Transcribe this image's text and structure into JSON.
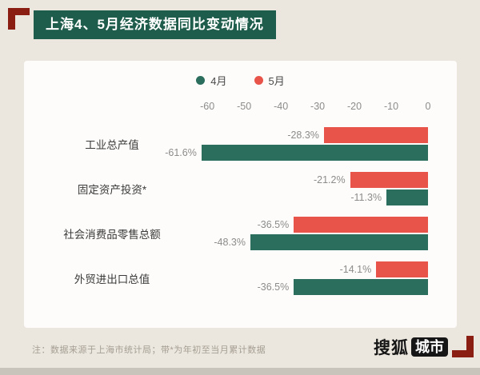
{
  "page": {
    "title": "上海4、5月经济数据同比变动情况",
    "note": "注：数据来源于上海市统计局；带*为年初至当月累计数据",
    "logo": {
      "text_black": "搜狐",
      "text_badge": "城市"
    },
    "colors": {
      "background": "#ece7de",
      "card": "#fdfcfa",
      "title_badge": "#1e5c4b",
      "bracket": "#8b1e12",
      "april_green": "#2c6e5d",
      "may_red": "#e85449"
    }
  },
  "chart_data": {
    "type": "bar",
    "orientation": "horizontal",
    "title": "上海4、5月经济数据同比变动情况",
    "categories": [
      "工业总产值",
      "固定资产投资*",
      "社会消费品零售总额",
      "外贸进出口总值"
    ],
    "series": [
      {
        "name": "5月",
        "color": "#e85449",
        "values": [
          -28.3,
          -21.2,
          -36.5,
          -14.1
        ]
      },
      {
        "name": "4月",
        "color": "#2c6e5d",
        "values": [
          -61.6,
          -11.3,
          -48.3,
          -36.5
        ]
      }
    ],
    "legend": [
      {
        "label": "4月",
        "color": "#2c6e5d"
      },
      {
        "label": "5月",
        "color": "#e85449"
      }
    ],
    "ticks": [
      -60,
      -50,
      -40,
      -30,
      -20,
      -10,
      0
    ],
    "xlim": [
      -62,
      0
    ],
    "value_suffix": "%",
    "legend_position": "top",
    "grid": false
  }
}
